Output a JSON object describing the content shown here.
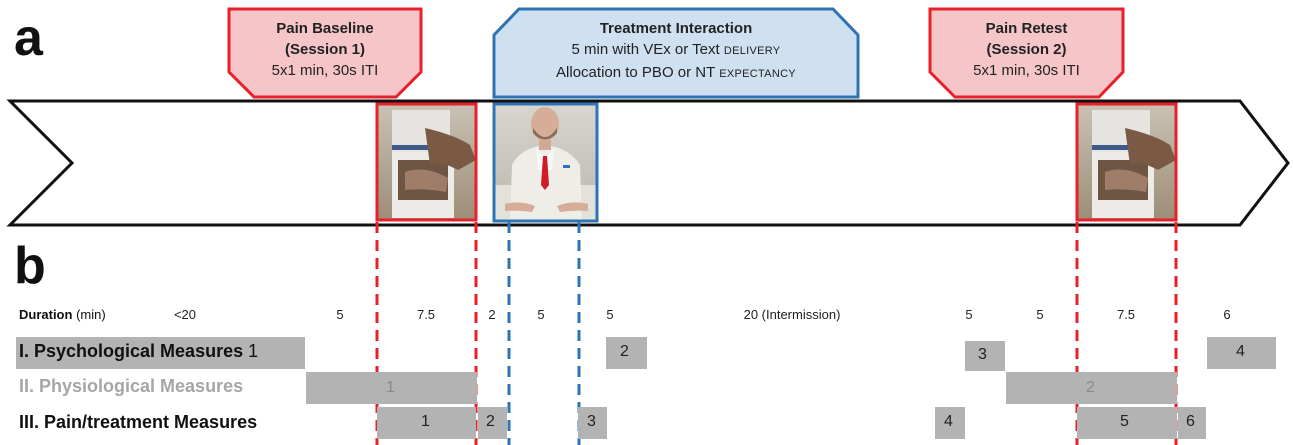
{
  "panels": {
    "a": "a",
    "b": "b"
  },
  "phases": [
    {
      "title": "Pain Baseline",
      "line2": "(Session 1)",
      "line3": "5x1 min, 30s ITI"
    },
    {
      "title": "Treatment Interaction",
      "line2": "5 min with VEx or Text",
      "line2_sc": "DELIVERY",
      "line3": "Allocation to PBO or NT",
      "line3_sc": "EXPECTANCY"
    },
    {
      "title": "Pain Retest",
      "line2": "(Session 2)",
      "line3": "5x1 min, 30s ITI"
    }
  ],
  "images": [
    "cold-pressor-photo",
    "virtual-doctor-avatar",
    "cold-pressor-photo"
  ],
  "duration": {
    "label": "Duration",
    "unit": "(min)",
    "values": [
      "<20",
      "5",
      "7.5",
      "2",
      "5",
      "5",
      "20 (Intermission)",
      "5",
      "5",
      "7.5",
      "6"
    ]
  },
  "rows": [
    {
      "label": "I. Psychological Measures",
      "label_num": "1",
      "nums": [
        "2",
        "3",
        "4"
      ]
    },
    {
      "label": "II. Physiological Measures",
      "nums": [
        "1",
        "2"
      ]
    },
    {
      "label": "III. Pain/treatment Measures",
      "nums": [
        "1",
        "2",
        "3",
        "4",
        "5",
        "6"
      ]
    }
  ],
  "colors": {
    "red": "#e8202a",
    "red_fill": "#f6c5c8",
    "blue": "#2e74b5",
    "blue_fill": "#cfe0f1",
    "bar": "#b3b3b3"
  }
}
